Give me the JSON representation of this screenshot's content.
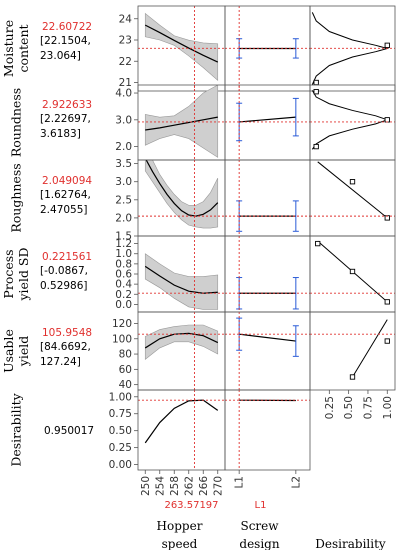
{
  "chart_data": {
    "type": "line",
    "colors": {
      "curve": "#000000",
      "band": "#cfcfcf",
      "current": "#e0302e",
      "errorbar": "#2a5bd7",
      "frame": "#555555"
    },
    "factors": [
      {
        "name": "Hopper speed",
        "name_lines": [
          "Hopper",
          "speed"
        ],
        "current": "263.57197",
        "current_value": 263.57197,
        "xlim": [
          248,
          272
        ],
        "ticks": [
          "250",
          "254",
          "258",
          "262",
          "266",
          "270"
        ],
        "tick_values": [
          250,
          254,
          258,
          262,
          266,
          270
        ]
      },
      {
        "name": "Screw design",
        "name_lines": [
          "Screw",
          "design"
        ],
        "current": "L1",
        "current_value": 0,
        "xlim": [
          -0.25,
          1.25
        ],
        "ticks": [
          "L1",
          "L2"
        ],
        "tick_values": [
          0,
          1
        ]
      },
      {
        "name": "Desirability",
        "name_lines": [
          "Desirability"
        ],
        "current": "",
        "xlim": [
          0,
          1.1
        ],
        "ticks": [
          "0.25",
          "0.50",
          "0.75",
          "1.00"
        ],
        "tick_values": [
          0.25,
          0.5,
          0.75,
          1.0
        ]
      }
    ],
    "responses": [
      {
        "name": "Moisture content",
        "label_lines": [
          "Moisture",
          "content"
        ],
        "value": "22.60722",
        "ci_lines": [
          "[22.1504,",
          "23.064]"
        ],
        "current": 22.60722,
        "ylim": [
          20.6,
          24.6
        ],
        "yticks": [
          "21",
          "22",
          "23",
          "24"
        ],
        "ytick_values": [
          21,
          22,
          23,
          24
        ],
        "hopper": {
          "x": [
            250,
            254,
            258,
            262,
            266,
            270
          ],
          "y": [
            23.7,
            23.35,
            22.98,
            22.62,
            22.28,
            21.96
          ],
          "lo": [
            23.15,
            23.0,
            22.75,
            22.25,
            21.7,
            21.1
          ],
          "hi": [
            24.25,
            23.7,
            23.2,
            22.99,
            22.86,
            22.82
          ]
        },
        "screw": {
          "x": [
            0,
            1
          ],
          "y": [
            22.6,
            22.6
          ],
          "lo": [
            22.15,
            22.15
          ],
          "hi": [
            23.06,
            23.06
          ]
        },
        "desir": {
          "type": "peak",
          "y": [
            20.9,
            21.3,
            21.8,
            22.2,
            22.45,
            22.6,
            22.75,
            23.0,
            23.4,
            23.9,
            24.3
          ],
          "d": [
            0.03,
            0.08,
            0.25,
            0.55,
            0.85,
            1.0,
            0.85,
            0.55,
            0.25,
            0.08,
            0.03
          ],
          "marks_y": [
            21.0,
            22.75
          ],
          "marks_d": [
            0.08,
            1.0
          ]
        }
      },
      {
        "name": "Roundness",
        "label_lines": [
          "Roundness"
        ],
        "value": "2.922633",
        "ci_lines": [
          "[2.22697,",
          "3.6183]"
        ],
        "current": 2.922633,
        "ylim": [
          1.5,
          4.3
        ],
        "yticks": [
          "2.0",
          "3.0",
          "4.0"
        ],
        "ytick_values": [
          2,
          3,
          4
        ],
        "hopper": {
          "x": [
            250,
            254,
            258,
            262,
            266,
            270
          ],
          "y": [
            2.62,
            2.7,
            2.8,
            2.9,
            3.0,
            3.1
          ],
          "lo": [
            2.05,
            2.3,
            2.45,
            2.3,
            1.95,
            1.6
          ],
          "hi": [
            3.2,
            3.1,
            3.15,
            3.5,
            4.0,
            4.3
          ]
        },
        "screw": {
          "x": [
            0,
            1
          ],
          "y": [
            2.92,
            3.1
          ],
          "lo": [
            2.22,
            2.4
          ],
          "hi": [
            3.62,
            3.8
          ]
        },
        "desir": {
          "type": "peak",
          "y": [
            1.9,
            2.1,
            2.4,
            2.65,
            2.85,
            3.0,
            3.15,
            3.35,
            3.6,
            3.85,
            4.1
          ],
          "d": [
            0.03,
            0.08,
            0.25,
            0.55,
            0.85,
            1.0,
            0.85,
            0.55,
            0.25,
            0.08,
            0.03
          ],
          "marks_y": [
            2.0,
            3.0,
            4.05
          ],
          "marks_d": [
            0.08,
            1.0,
            0.08
          ]
        }
      },
      {
        "name": "Roughness",
        "label_lines": [
          "Roughness"
        ],
        "value": "2.049094",
        "ci_lines": [
          "[1.62764,",
          "2.47055]"
        ],
        "current": 2.049094,
        "ylim": [
          1.5,
          3.6
        ],
        "yticks": [
          "1.5",
          "2.0",
          "2.5",
          "3.0",
          "3.5"
        ],
        "ytick_values": [
          1.5,
          2.0,
          2.5,
          3.0,
          3.5
        ],
        "hopper": {
          "x": [
            250,
            252,
            254,
            256,
            258,
            260,
            262,
            264,
            266,
            268,
            270
          ],
          "y": [
            3.65,
            3.28,
            2.95,
            2.65,
            2.4,
            2.2,
            2.08,
            2.05,
            2.1,
            2.22,
            2.42
          ],
          "lo": [
            3.3,
            3.0,
            2.7,
            2.4,
            2.15,
            1.95,
            1.8,
            1.75,
            1.72,
            1.72,
            1.75
          ],
          "hi": [
            4.0,
            3.6,
            3.2,
            2.9,
            2.65,
            2.45,
            2.35,
            2.35,
            2.45,
            2.7,
            3.1
          ]
        },
        "screw": {
          "x": [
            0,
            1
          ],
          "y": [
            2.05,
            2.05
          ],
          "lo": [
            1.63,
            1.63
          ],
          "hi": [
            2.47,
            2.47
          ]
        },
        "desir": {
          "type": "line",
          "y": [
            3.55,
            2.0
          ],
          "d": [
            0.1,
            1.0
          ],
          "marks_y": [
            3.0,
            2.0
          ],
          "marks_d": [
            0.55,
            1.0
          ]
        }
      },
      {
        "name": "Process yield SD",
        "label_lines": [
          "Process",
          "yield SD"
        ],
        "value": "0.221561",
        "ci_lines": [
          "[-0.0867,",
          "0.52986]"
        ],
        "current": 0.221561,
        "ylim": [
          -0.15,
          1.35
        ],
        "yticks": [
          "0.0",
          "0.2",
          "0.4",
          "0.6",
          "0.8",
          "1.0",
          "1.2"
        ],
        "ytick_values": [
          0.0,
          0.2,
          0.4,
          0.6,
          0.8,
          1.0,
          1.2
        ],
        "hopper": {
          "x": [
            250,
            254,
            258,
            262,
            266,
            270
          ],
          "y": [
            0.75,
            0.56,
            0.38,
            0.26,
            0.22,
            0.24
          ],
          "lo": [
            0.5,
            0.33,
            0.12,
            -0.05,
            -0.1,
            -0.1
          ],
          "hi": [
            1.0,
            0.8,
            0.62,
            0.55,
            0.55,
            0.58
          ]
        },
        "screw": {
          "x": [
            0,
            1
          ],
          "y": [
            0.22,
            0.22
          ],
          "lo": [
            -0.09,
            -0.09
          ],
          "hi": [
            0.53,
            0.53
          ]
        },
        "desir": {
          "type": "line",
          "y": [
            1.25,
            0.05
          ],
          "d": [
            0.1,
            1.0
          ],
          "marks_y": [
            1.2,
            0.65,
            0.05
          ],
          "marks_d": [
            0.1,
            0.55,
            1.0
          ]
        }
      },
      {
        "name": "Usable yield",
        "label_lines": [
          "Usable",
          "yield"
        ],
        "value": "105.9548",
        "ci_lines": [
          "[84.6692,",
          "127.24]"
        ],
        "current": 105.9548,
        "ylim": [
          33,
          135
        ],
        "yticks": [
          "40",
          "60",
          "80",
          "100",
          "120"
        ],
        "ytick_values": [
          40,
          60,
          80,
          100,
          120
        ],
        "hopper": {
          "x": [
            250,
            254,
            258,
            262,
            266,
            270
          ],
          "y": [
            88,
            100,
            106,
            107,
            104,
            95
          ],
          "lo": [
            73,
            88,
            96,
            96,
            90,
            80
          ],
          "hi": [
            103,
            112,
            116,
            118,
            118,
            110
          ]
        },
        "screw": {
          "x": [
            0,
            1
          ],
          "y": [
            106,
            97
          ],
          "lo": [
            85,
            77
          ],
          "hi": [
            127,
            117
          ]
        },
        "desir": {
          "type": "line",
          "y": [
            50,
            125
          ],
          "d": [
            0.55,
            1.0
          ],
          "marks_y": [
            50,
            97
          ],
          "marks_d": [
            0.55,
            1.0
          ]
        }
      },
      {
        "name": "Desirability",
        "label_lines": [
          "Desirability"
        ],
        "value": "0.950017",
        "ci_lines": [],
        "current": 0.950017,
        "ylim": [
          -0.08,
          1.1
        ],
        "yticks": [
          "0.00",
          "0.25",
          "0.50",
          "0.75",
          "1.00"
        ],
        "ytick_values": [
          0.0,
          0.25,
          0.5,
          0.75,
          1.0
        ],
        "hopper": {
          "x": [
            250,
            254,
            258,
            262,
            266,
            270
          ],
          "y": [
            0.32,
            0.62,
            0.83,
            0.94,
            0.95,
            0.8
          ]
        },
        "screw": {
          "x": [
            0,
            1
          ],
          "y": [
            0.95,
            0.945
          ]
        }
      }
    ]
  }
}
